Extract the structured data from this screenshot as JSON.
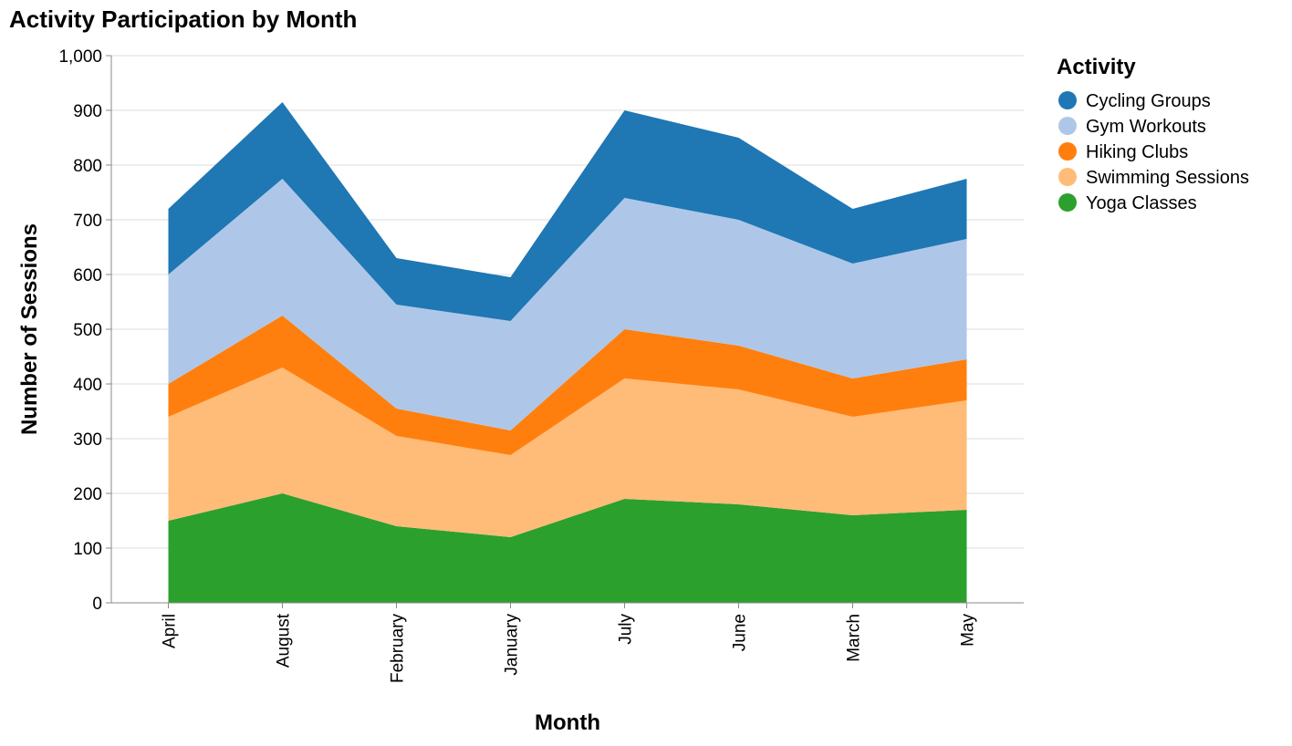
{
  "chart_data": {
    "type": "area",
    "stacked": true,
    "title": "Activity Participation by Month",
    "xlabel": "Month",
    "ylabel": "Number of Sessions",
    "ylim": [
      0,
      1000
    ],
    "yticks": [
      0,
      100,
      200,
      300,
      400,
      500,
      600,
      700,
      800,
      900,
      1000
    ],
    "ytick_labels": [
      "0",
      "100",
      "200",
      "300",
      "400",
      "500",
      "600",
      "700",
      "800",
      "900",
      "1,000"
    ],
    "grid": true,
    "legend_position": "right",
    "legend_title": "Activity",
    "categories": [
      "April",
      "August",
      "February",
      "January",
      "July",
      "June",
      "March",
      "May"
    ],
    "series": [
      {
        "name": "Yoga Classes",
        "color": "#2ca02c",
        "values": [
          150,
          200,
          140,
          120,
          190,
          180,
          160,
          170
        ]
      },
      {
        "name": "Swimming Sessions",
        "color": "#ffbb78",
        "values": [
          190,
          230,
          165,
          150,
          220,
          210,
          180,
          200
        ]
      },
      {
        "name": "Hiking Clubs",
        "color": "#ff7f0e",
        "values": [
          60,
          95,
          50,
          45,
          90,
          80,
          70,
          75
        ]
      },
      {
        "name": "Gym Workouts",
        "color": "#aec7e8",
        "values": [
          200,
          250,
          190,
          200,
          240,
          230,
          210,
          220
        ]
      },
      {
        "name": "Cycling Groups",
        "color": "#1f77b4",
        "values": [
          120,
          140,
          85,
          80,
          160,
          150,
          100,
          110
        ]
      }
    ],
    "legend_order": [
      "Cycling Groups",
      "Gym Workouts",
      "Hiking Clubs",
      "Swimming Sessions",
      "Yoga Classes"
    ]
  }
}
